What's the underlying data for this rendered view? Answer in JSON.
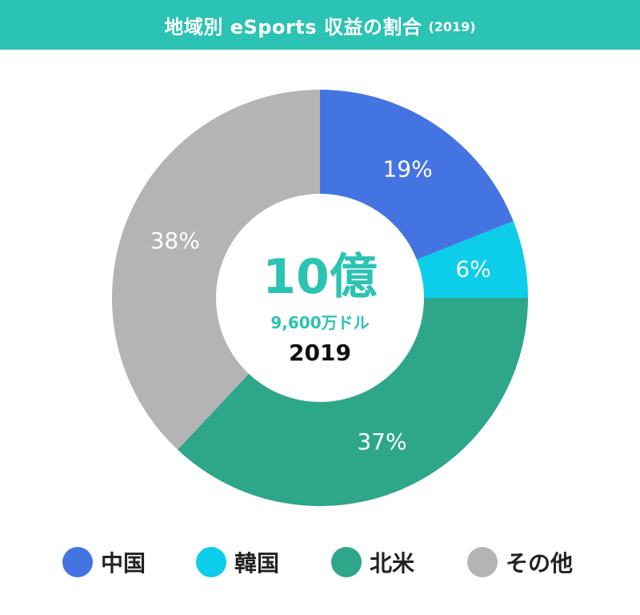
{
  "header": {
    "title": "地域別 eSports 収益の割合",
    "year": "(2019)"
  },
  "center": {
    "total": "10億",
    "sub": "9,600万ドル",
    "year": "2019"
  },
  "colors": {
    "header_bg": "#2bc3b3",
    "center_accent": "#2bc3b3",
    "slice_label": "#ffffff"
  },
  "chart_data": {
    "type": "pie",
    "title": "地域別 eSports 収益の割合",
    "subtitle": "(2019)",
    "legend_position": "bottom",
    "slices": [
      {
        "name": "中国",
        "value": 19,
        "label": "19%",
        "color": "#4474e2"
      },
      {
        "name": "韓国",
        "value": 6,
        "label": "6%",
        "color": "#0ccdea"
      },
      {
        "name": "北米",
        "value": 37,
        "label": "37%",
        "color": "#2ea68a"
      },
      {
        "name": "その他",
        "value": 38,
        "label": "38%",
        "color": "#b4b4b4"
      }
    ]
  }
}
